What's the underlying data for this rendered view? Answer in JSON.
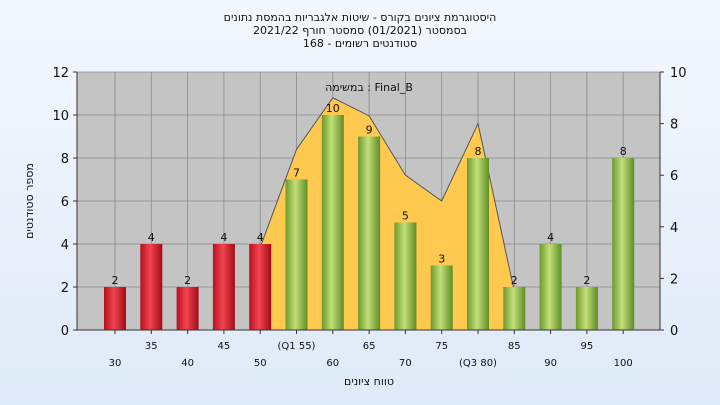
{
  "chart_data": {
    "type": "bar",
    "title_lines": [
      "היסטוגרמת ציונים בקורס - שיטות אלגבריות בהמסת נתונים",
      "בסמסטר  (01/2021)  סמסטר חורף 2021/22",
      "סטודנטים רשומים - 168"
    ],
    "annotation": "במשימה : Final_B",
    "ylabel": "מספר סטודנטים",
    "xlabel": "טווח ציונים",
    "ylim": [
      0,
      12
    ],
    "y2lim": [
      0,
      10
    ],
    "yticks": [
      "0",
      "2",
      "4",
      "6",
      "8",
      "10",
      "12"
    ],
    "y2ticks": [
      "0",
      "2",
      "4",
      "6",
      "8",
      "10"
    ],
    "categories_upper": [
      "35",
      "45",
      "(Q1 55)",
      "65",
      "75",
      "85",
      "95"
    ],
    "categories_lower": [
      "30",
      "40",
      "50",
      "60",
      "70",
      "(Q3 80)",
      "90",
      "100"
    ],
    "x": [
      30,
      35,
      40,
      45,
      50,
      55,
      60,
      65,
      70,
      75,
      80,
      85,
      90,
      95,
      100
    ],
    "values": [
      2,
      4,
      2,
      4,
      4,
      7,
      10,
      9,
      5,
      3,
      8,
      2,
      4,
      2,
      8
    ],
    "bar_colors": [
      "red",
      "red",
      "red",
      "red",
      "red",
      "green",
      "green",
      "green",
      "green",
      "green",
      "green",
      "green",
      "green",
      "green",
      "green"
    ],
    "area_series": {
      "x": [
        50,
        55,
        60,
        65,
        70,
        75,
        80,
        85
      ],
      "values": [
        3.2,
        7.0,
        9.0,
        8.3,
        6.0,
        5.0,
        8.0,
        1.5
      ]
    },
    "grid": true,
    "colors": {
      "red": "#e8303a",
      "green": "#94c24a",
      "area": "#ffc94f",
      "plot_bg": "#c4c4c4"
    }
  }
}
